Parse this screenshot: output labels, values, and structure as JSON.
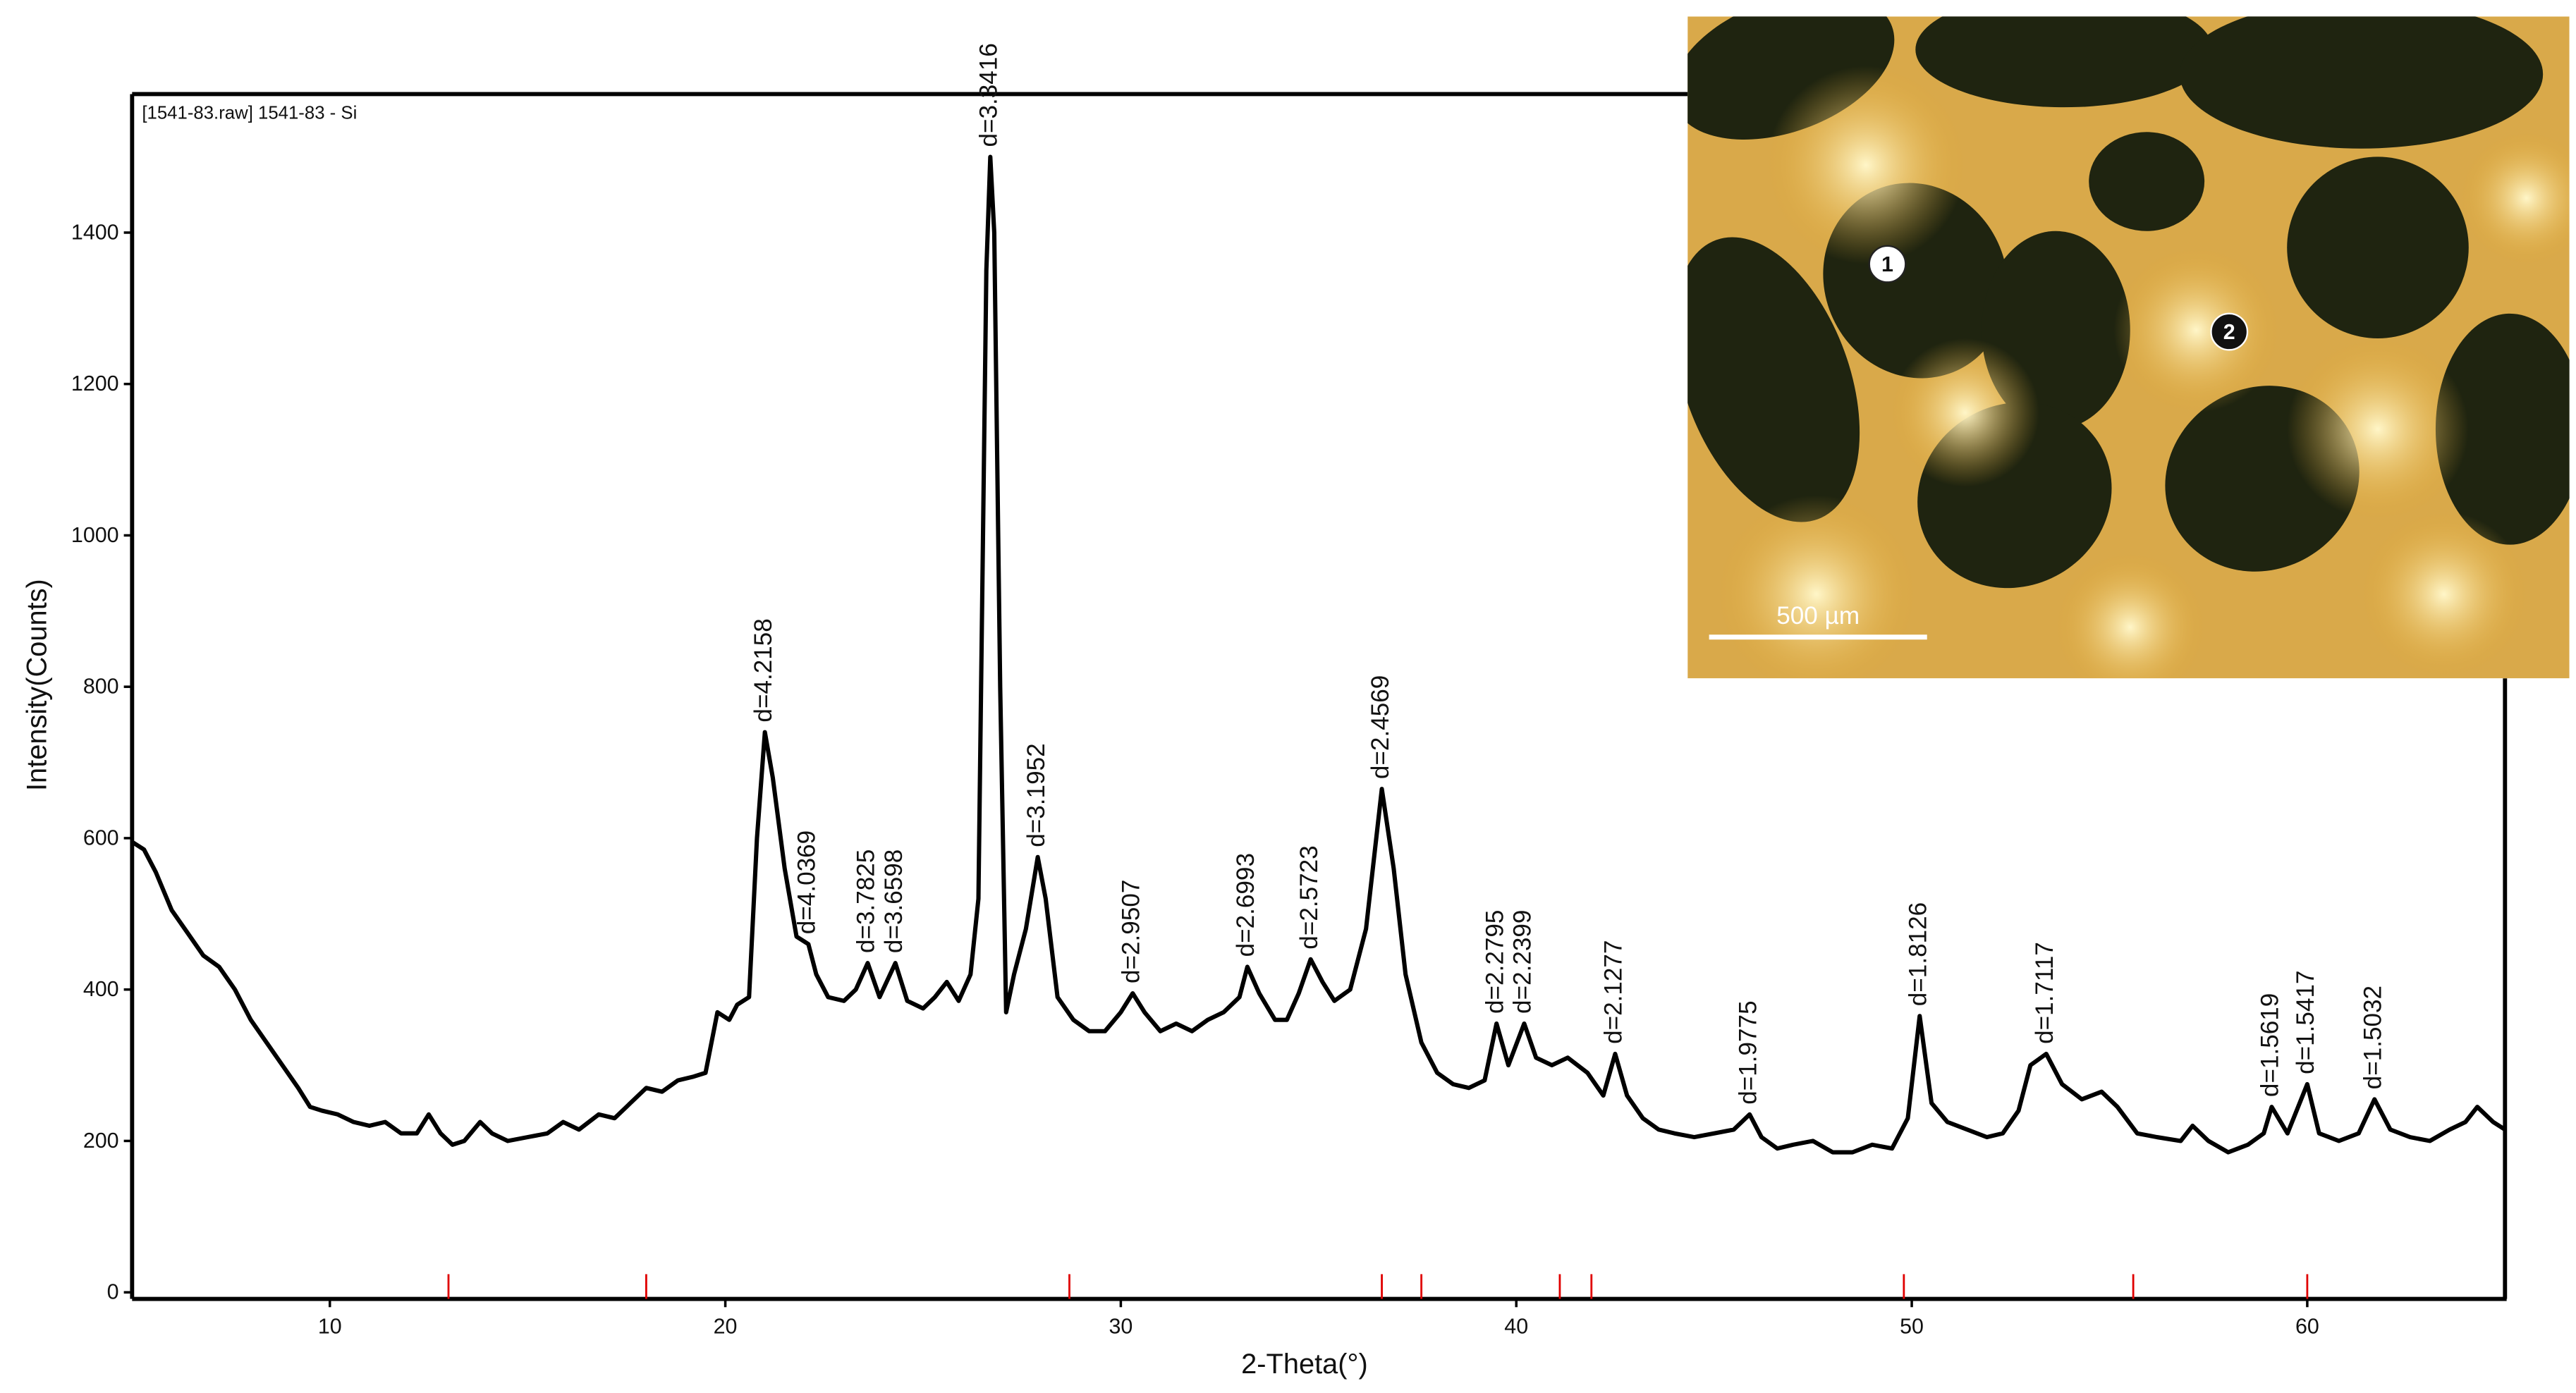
{
  "chart_data": {
    "type": "line",
    "title": "[1541-83.raw] 1541-83 - Si",
    "x_label": "2-Theta(°)",
    "y_label": "Intensity(Counts)",
    "color": "#000000",
    "xlim": [
      5,
      65
    ],
    "ylim": [
      0,
      1583
    ],
    "xticks": [
      10,
      20,
      30,
      40,
      50,
      60
    ],
    "yticks": [
      0,
      200,
      400,
      600,
      800,
      1000,
      1200,
      1400
    ],
    "x": [
      5.0,
      5.3,
      5.6,
      6.0,
      6.4,
      6.8,
      7.2,
      7.6,
      8.0,
      8.4,
      8.8,
      9.2,
      9.5,
      9.8,
      10.2,
      10.6,
      11.0,
      11.4,
      11.8,
      12.2,
      12.5,
      12.8,
      13.1,
      13.4,
      13.8,
      14.1,
      14.5,
      15.0,
      15.5,
      15.9,
      16.3,
      16.8,
      17.2,
      17.6,
      18.0,
      18.4,
      18.8,
      19.2,
      19.5,
      19.8,
      20.1,
      20.3,
      20.6,
      20.8,
      21.0,
      21.2,
      21.5,
      21.8,
      22.1,
      22.3,
      22.6,
      23.0,
      23.3,
      23.6,
      23.9,
      24.3,
      24.6,
      25.0,
      25.3,
      25.6,
      25.9,
      26.2,
      26.4,
      26.6,
      26.7,
      26.8,
      26.95,
      27.1,
      27.3,
      27.6,
      27.9,
      28.1,
      28.4,
      28.8,
      29.2,
      29.6,
      30.0,
      30.3,
      30.6,
      31.0,
      31.4,
      31.8,
      32.2,
      32.6,
      33.0,
      33.2,
      33.5,
      33.9,
      34.2,
      34.5,
      34.8,
      35.1,
      35.4,
      35.8,
      36.2,
      36.6,
      36.9,
      37.2,
      37.6,
      38.0,
      38.4,
      38.8,
      39.2,
      39.5,
      39.8,
      40.2,
      40.5,
      40.9,
      41.3,
      41.8,
      42.2,
      42.5,
      42.8,
      43.2,
      43.6,
      44.0,
      44.5,
      45.0,
      45.5,
      45.9,
      46.2,
      46.6,
      47.0,
      47.5,
      48.0,
      48.5,
      49.0,
      49.5,
      49.9,
      50.2,
      50.5,
      50.9,
      51.4,
      51.9,
      52.3,
      52.7,
      53.0,
      53.4,
      53.8,
      54.3,
      54.8,
      55.2,
      55.7,
      56.2,
      56.8,
      57.1,
      57.5,
      58.0,
      58.5,
      58.9,
      59.1,
      59.5,
      60.0,
      60.3,
      60.8,
      61.3,
      61.7,
      62.1,
      62.6,
      63.1,
      63.6,
      64.0,
      64.3,
      64.7,
      65.0
    ],
    "values": [
      595,
      585,
      555,
      505,
      475,
      445,
      430,
      400,
      360,
      330,
      300,
      270,
      245,
      240,
      235,
      225,
      220,
      225,
      210,
      210,
      235,
      210,
      195,
      200,
      225,
      210,
      200,
      205,
      210,
      225,
      215,
      235,
      230,
      250,
      270,
      265,
      280,
      285,
      290,
      370,
      360,
      380,
      390,
      600,
      740,
      680,
      560,
      470,
      460,
      420,
      390,
      385,
      400,
      435,
      390,
      435,
      385,
      375,
      390,
      410,
      385,
      420,
      520,
      1350,
      1500,
      1400,
      800,
      370,
      420,
      480,
      575,
      520,
      390,
      360,
      345,
      345,
      370,
      395,
      370,
      345,
      355,
      345,
      360,
      370,
      390,
      430,
      395,
      360,
      360,
      395,
      440,
      410,
      385,
      400,
      480,
      665,
      560,
      420,
      330,
      290,
      275,
      270,
      280,
      355,
      300,
      355,
      310,
      300,
      310,
      290,
      260,
      315,
      260,
      230,
      215,
      210,
      205,
      210,
      215,
      235,
      205,
      190,
      195,
      200,
      185,
      185,
      195,
      190,
      230,
      365,
      250,
      225,
      215,
      205,
      210,
      240,
      300,
      315,
      275,
      255,
      265,
      245,
      210,
      205,
      200,
      220,
      200,
      185,
      195,
      210,
      245,
      210,
      275,
      210,
      200,
      210,
      255,
      215,
      205,
      200,
      215,
      225,
      245,
      225,
      215
    ],
    "peaks": [
      {
        "x": 21.0,
        "y": 740,
        "label": "d=4.2158"
      },
      {
        "x": 22.1,
        "y": 460,
        "label": "d=4.0369"
      },
      {
        "x": 23.6,
        "y": 435,
        "label": "d=3.7825"
      },
      {
        "x": 24.3,
        "y": 435,
        "label": "d=3.6598"
      },
      {
        "x": 26.7,
        "y": 1500,
        "label": "d=3.3416"
      },
      {
        "x": 27.9,
        "y": 575,
        "label": "d=3.1952"
      },
      {
        "x": 30.3,
        "y": 395,
        "label": "d=2.9507"
      },
      {
        "x": 33.2,
        "y": 430,
        "label": "d=2.6993"
      },
      {
        "x": 34.8,
        "y": 440,
        "label": "d=2.5723"
      },
      {
        "x": 36.6,
        "y": 665,
        "label": "d=2.4569"
      },
      {
        "x": 39.5,
        "y": 355,
        "label": "d=2.2795"
      },
      {
        "x": 40.2,
        "y": 355,
        "label": "d=2.2399"
      },
      {
        "x": 42.5,
        "y": 315,
        "label": "d=2.1277"
      },
      {
        "x": 45.9,
        "y": 235,
        "label": "d=1.9775"
      },
      {
        "x": 50.2,
        "y": 365,
        "label": "d=1.8126"
      },
      {
        "x": 53.4,
        "y": 315,
        "label": "d=1.7117"
      },
      {
        "x": 59.1,
        "y": 245,
        "label": "d=1.5619"
      },
      {
        "x": 60.0,
        "y": 275,
        "label": "d=1.5417"
      },
      {
        "x": 61.7,
        "y": 255,
        "label": "d=1.5032"
      }
    ],
    "reference_lines": {
      "color": "#e00000",
      "x": [
        13.0,
        18.0,
        28.7,
        36.6,
        37.6,
        41.1,
        41.9,
        49.8,
        55.6,
        60.0
      ]
    }
  },
  "inset": {
    "markers": [
      "1",
      "2"
    ],
    "scale_label": "500 µm"
  }
}
